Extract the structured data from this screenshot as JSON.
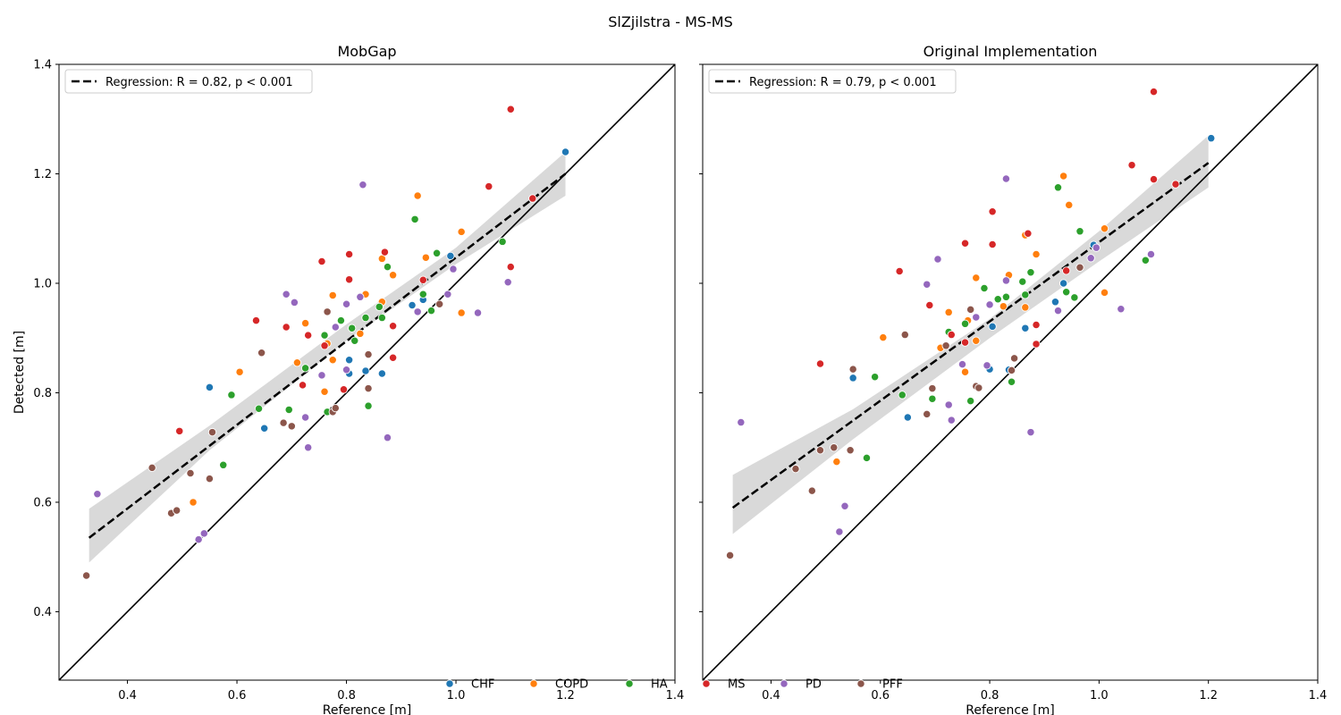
{
  "figure_title": "SlZjilstra - MS-MS",
  "colors": {
    "CHF": "#1f77b4",
    "COPD": "#ff7f0e",
    "HA": "#2ca02c",
    "MS": "#d62728",
    "PD": "#9467bd",
    "PFF": "#8c564b",
    "regression": "#000000",
    "ci_band": "#d9d9d9"
  },
  "legend_groups": [
    "CHF",
    "COPD",
    "HA",
    "MS",
    "PD",
    "PFF"
  ],
  "chart_data": [
    {
      "type": "scatter",
      "title": "MobGap",
      "xlabel": "Reference [m]",
      "ylabel": "Detected [m]",
      "xlim": [
        0.275,
        1.4
      ],
      "ylim": [
        0.275,
        1.4
      ],
      "xticks": [
        0.4,
        0.6,
        0.8,
        1.0,
        1.2,
        1.4
      ],
      "yticks": [
        0.4,
        0.6,
        0.8,
        1.0,
        1.2,
        1.4
      ],
      "identity_line": true,
      "regression": {
        "label": "Regression: R = 0.82, p < 0.001",
        "x_range": [
          0.33,
          1.2
        ],
        "y_start": 0.535,
        "y_end": 1.2,
        "ci_lower": [
          [
            0.33,
            0.49
          ],
          [
            0.55,
            0.695
          ],
          [
            0.8,
            0.895
          ],
          [
            1.0,
            1.035
          ],
          [
            1.2,
            1.16
          ]
        ],
        "ci_upper": [
          [
            0.33,
            0.588
          ],
          [
            0.55,
            0.74
          ],
          [
            0.8,
            0.925
          ],
          [
            1.0,
            1.065
          ],
          [
            1.2,
            1.24
          ]
        ]
      },
      "series": [
        {
          "name": "CHF",
          "points": [
            [
              0.55,
              0.81
            ],
            [
              0.65,
              0.735
            ],
            [
              0.805,
              0.86
            ],
            [
              0.805,
              0.835
            ],
            [
              0.835,
              0.84
            ],
            [
              0.865,
              0.835
            ],
            [
              0.92,
              0.96
            ],
            [
              0.94,
              0.97
            ],
            [
              0.99,
              1.05
            ],
            [
              1.2,
              1.24
            ]
          ]
        },
        {
          "name": "COPD",
          "points": [
            [
              0.52,
              0.6
            ],
            [
              0.605,
              0.838
            ],
            [
              0.71,
              0.855
            ],
            [
              0.725,
              0.927
            ],
            [
              0.76,
              0.802
            ],
            [
              0.765,
              0.89
            ],
            [
              0.775,
              0.86
            ],
            [
              0.775,
              0.978
            ],
            [
              0.825,
              0.908
            ],
            [
              0.835,
              0.98
            ],
            [
              0.865,
              0.966
            ],
            [
              0.865,
              1.045
            ],
            [
              0.885,
              1.015
            ],
            [
              0.93,
              1.16
            ],
            [
              0.945,
              1.047
            ],
            [
              1.01,
              1.094
            ],
            [
              1.01,
              0.946
            ]
          ]
        },
        {
          "name": "HA",
          "points": [
            [
              0.575,
              0.668
            ],
            [
              0.59,
              0.796
            ],
            [
              0.64,
              0.771
            ],
            [
              0.695,
              0.769
            ],
            [
              0.725,
              0.845
            ],
            [
              0.76,
              0.905
            ],
            [
              0.765,
              0.765
            ],
            [
              0.79,
              0.932
            ],
            [
              0.81,
              0.918
            ],
            [
              0.815,
              0.895
            ],
            [
              0.835,
              0.937
            ],
            [
              0.84,
              0.776
            ],
            [
              0.86,
              0.957
            ],
            [
              0.865,
              0.937
            ],
            [
              0.875,
              1.03
            ],
            [
              0.925,
              1.117
            ],
            [
              0.94,
              0.98
            ],
            [
              0.955,
              0.95
            ],
            [
              0.965,
              1.055
            ],
            [
              1.085,
              1.076
            ]
          ]
        },
        {
          "name": "MS",
          "points": [
            [
              0.495,
              0.73
            ],
            [
              0.635,
              0.932
            ],
            [
              0.69,
              0.92
            ],
            [
              0.72,
              0.814
            ],
            [
              0.73,
              0.905
            ],
            [
              0.755,
              1.04
            ],
            [
              0.76,
              0.886
            ],
            [
              0.795,
              0.806
            ],
            [
              0.805,
              1.053
            ],
            [
              0.805,
              1.007
            ],
            [
              0.87,
              1.057
            ],
            [
              0.885,
              0.922
            ],
            [
              0.885,
              0.864
            ],
            [
              0.94,
              1.006
            ],
            [
              1.06,
              1.177
            ],
            [
              1.1,
              1.03
            ],
            [
              1.1,
              1.318
            ],
            [
              1.14,
              1.155
            ]
          ]
        },
        {
          "name": "PD",
          "points": [
            [
              0.345,
              0.615
            ],
            [
              0.53,
              0.532
            ],
            [
              0.54,
              0.543
            ],
            [
              0.69,
              0.98
            ],
            [
              0.705,
              0.965
            ],
            [
              0.725,
              0.755
            ],
            [
              0.73,
              0.7
            ],
            [
              0.755,
              0.832
            ],
            [
              0.78,
              0.92
            ],
            [
              0.8,
              0.842
            ],
            [
              0.8,
              0.962
            ],
            [
              0.825,
              0.975
            ],
            [
              0.83,
              1.18
            ],
            [
              0.875,
              0.718
            ],
            [
              0.93,
              0.948
            ],
            [
              0.985,
              0.98
            ],
            [
              0.995,
              1.026
            ],
            [
              1.04,
              0.946
            ],
            [
              1.095,
              1.002
            ]
          ]
        },
        {
          "name": "PFF",
          "points": [
            [
              0.325,
              0.466
            ],
            [
              0.445,
              0.663
            ],
            [
              0.48,
              0.58
            ],
            [
              0.49,
              0.585
            ],
            [
              0.515,
              0.653
            ],
            [
              0.55,
              0.643
            ],
            [
              0.555,
              0.728
            ],
            [
              0.645,
              0.873
            ],
            [
              0.685,
              0.745
            ],
            [
              0.7,
              0.739
            ],
            [
              0.765,
              0.948
            ],
            [
              0.775,
              0.765
            ],
            [
              0.78,
              0.772
            ],
            [
              0.84,
              0.87
            ],
            [
              0.84,
              0.808
            ],
            [
              0.97,
              0.962
            ]
          ]
        }
      ]
    },
    {
      "type": "scatter",
      "title": "Original Implementation",
      "xlabel": "Reference [m]",
      "ylabel": "",
      "xlim": [
        0.275,
        1.4
      ],
      "ylim": [
        0.275,
        1.4
      ],
      "xticks": [
        0.4,
        0.6,
        0.8,
        1.0,
        1.2,
        1.4
      ],
      "yticks": [
        0.4,
        0.6,
        0.8,
        1.0,
        1.2,
        1.4
      ],
      "identity_line": true,
      "regression": {
        "label": "Regression: R = 0.79, p < 0.001",
        "x_range": [
          0.33,
          1.2
        ],
        "y_start": 0.59,
        "y_end": 1.22,
        "ci_lower": [
          [
            0.33,
            0.542
          ],
          [
            0.55,
            0.715
          ],
          [
            0.8,
            0.9
          ],
          [
            1.0,
            1.04
          ],
          [
            1.2,
            1.175
          ]
        ],
        "ci_upper": [
          [
            0.33,
            0.65
          ],
          [
            0.55,
            0.77
          ],
          [
            0.8,
            0.935
          ],
          [
            1.0,
            1.095
          ],
          [
            1.2,
            1.27
          ]
        ]
      },
      "series": [
        {
          "name": "CHF",
          "points": [
            [
              0.55,
              0.827
            ],
            [
              0.65,
              0.755
            ],
            [
              0.8,
              0.843
            ],
            [
              0.805,
              0.921
            ],
            [
              0.835,
              0.842
            ],
            [
              0.865,
              0.918
            ],
            [
              0.92,
              0.966
            ],
            [
              0.935,
              1.0
            ],
            [
              0.99,
              1.07
            ],
            [
              1.205,
              1.265
            ]
          ]
        },
        {
          "name": "COPD",
          "points": [
            [
              0.52,
              0.674
            ],
            [
              0.605,
              0.901
            ],
            [
              0.71,
              0.882
            ],
            [
              0.725,
              0.947
            ],
            [
              0.755,
              0.838
            ],
            [
              0.76,
              0.932
            ],
            [
              0.775,
              0.895
            ],
            [
              0.775,
              1.01
            ],
            [
              0.825,
              0.958
            ],
            [
              0.835,
              1.015
            ],
            [
              0.865,
              1.088
            ],
            [
              0.865,
              0.956
            ],
            [
              0.885,
              1.053
            ],
            [
              0.935,
              1.196
            ],
            [
              0.945,
              1.143
            ],
            [
              1.01,
              1.1
            ],
            [
              1.01,
              0.983
            ]
          ]
        },
        {
          "name": "HA",
          "points": [
            [
              0.575,
              0.681
            ],
            [
              0.59,
              0.829
            ],
            [
              0.64,
              0.796
            ],
            [
              0.695,
              0.789
            ],
            [
              0.725,
              0.911
            ],
            [
              0.755,
              0.926
            ],
            [
              0.765,
              0.785
            ],
            [
              0.79,
              0.991
            ],
            [
              0.815,
              0.971
            ],
            [
              0.83,
              0.975
            ],
            [
              0.84,
              0.82
            ],
            [
              0.86,
              1.003
            ],
            [
              0.865,
              0.979
            ],
            [
              0.875,
              1.02
            ],
            [
              0.925,
              1.175
            ],
            [
              0.94,
              0.984
            ],
            [
              0.955,
              0.974
            ],
            [
              0.965,
              1.095
            ],
            [
              1.085,
              1.042
            ]
          ]
        },
        {
          "name": "MS",
          "points": [
            [
              0.49,
              0.853
            ],
            [
              0.635,
              1.022
            ],
            [
              0.69,
              0.96
            ],
            [
              0.73,
              0.906
            ],
            [
              0.755,
              0.892
            ],
            [
              0.755,
              1.073
            ],
            [
              0.805,
              1.131
            ],
            [
              0.805,
              1.071
            ],
            [
              0.87,
              1.091
            ],
            [
              0.885,
              0.924
            ],
            [
              0.885,
              0.889
            ],
            [
              0.94,
              1.023
            ],
            [
              1.06,
              1.216
            ],
            [
              1.1,
              1.19
            ],
            [
              1.1,
              1.35
            ],
            [
              1.14,
              1.181
            ]
          ]
        },
        {
          "name": "PD",
          "points": [
            [
              0.345,
              0.746
            ],
            [
              0.525,
              0.546
            ],
            [
              0.535,
              0.593
            ],
            [
              0.685,
              0.998
            ],
            [
              0.705,
              1.044
            ],
            [
              0.725,
              0.778
            ],
            [
              0.73,
              0.75
            ],
            [
              0.75,
              0.852
            ],
            [
              0.775,
              0.938
            ],
            [
              0.795,
              0.85
            ],
            [
              0.8,
              0.961
            ],
            [
              0.83,
              1.005
            ],
            [
              0.83,
              1.191
            ],
            [
              0.875,
              0.728
            ],
            [
              0.925,
              0.95
            ],
            [
              0.985,
              1.046
            ],
            [
              0.995,
              1.065
            ],
            [
              1.04,
              0.953
            ],
            [
              1.095,
              1.053
            ]
          ]
        },
        {
          "name": "PFF",
          "points": [
            [
              0.325,
              0.503
            ],
            [
              0.445,
              0.661
            ],
            [
              0.475,
              0.621
            ],
            [
              0.49,
              0.695
            ],
            [
              0.515,
              0.7
            ],
            [
              0.545,
              0.695
            ],
            [
              0.55,
              0.843
            ],
            [
              0.645,
              0.906
            ],
            [
              0.685,
              0.761
            ],
            [
              0.695,
              0.808
            ],
            [
              0.72,
              0.886
            ],
            [
              0.765,
              0.952
            ],
            [
              0.775,
              0.812
            ],
            [
              0.78,
              0.809
            ],
            [
              0.84,
              0.841
            ],
            [
              0.845,
              0.863
            ],
            [
              0.965,
              1.029
            ]
          ]
        }
      ]
    }
  ]
}
